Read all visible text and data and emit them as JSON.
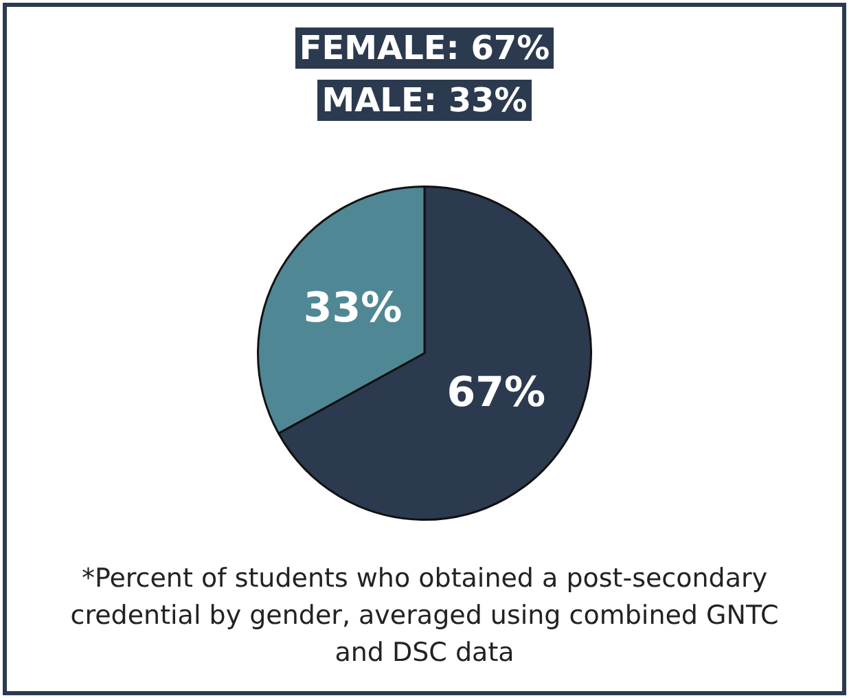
{
  "chart_data": {
    "type": "pie",
    "title": "FEMALE: 67%",
    "subtitle": "MALE: 33%",
    "categories": [
      null,
      null
    ],
    "values": [
      67,
      33
    ],
    "colors": [
      "#2b3a4f",
      "#4f8894"
    ],
    "value_labels": [
      "67%",
      "33%"
    ],
    "annotations": [
      "*Percent of students who obtained a post-secondary credential by gender, averaged using combined GNTC and DSC data"
    ],
    "legend": false
  }
}
